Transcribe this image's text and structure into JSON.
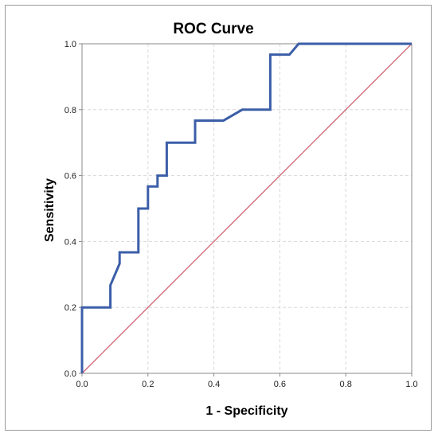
{
  "chart_data": {
    "type": "line",
    "title": "ROC Curve",
    "xlabel": "1 - Specificity",
    "ylabel": "Sensitivity",
    "xlim": [
      0,
      1
    ],
    "ylim": [
      0,
      1
    ],
    "xticks": [
      "0.0",
      "0.2",
      "0.4",
      "0.6",
      "0.8",
      "1.0"
    ],
    "yticks": [
      "0.0",
      "0.2",
      "0.4",
      "0.6",
      "0.8",
      "1.0"
    ],
    "grid": true,
    "legend": "none",
    "series": [
      {
        "color": "#3b5ea8",
        "x": [
          0,
          0,
          0.086,
          0.086,
          0.114,
          0.114,
          0.171,
          0.171,
          0.2,
          0.2,
          0.229,
          0.229,
          0.257,
          0.257,
          0.343,
          0.343,
          0.429,
          0.486,
          0.571,
          0.571,
          0.629,
          0.657,
          1.0
        ],
        "y": [
          0,
          0.2,
          0.2,
          0.267,
          0.333,
          0.367,
          0.367,
          0.5,
          0.5,
          0.567,
          0.567,
          0.6,
          0.6,
          0.7,
          0.7,
          0.767,
          0.767,
          0.8,
          0.8,
          0.967,
          0.967,
          1.0,
          1.0
        ]
      },
      {
        "color": "#d06070",
        "x": [
          0,
          1
        ],
        "y": [
          0,
          1
        ]
      }
    ]
  }
}
